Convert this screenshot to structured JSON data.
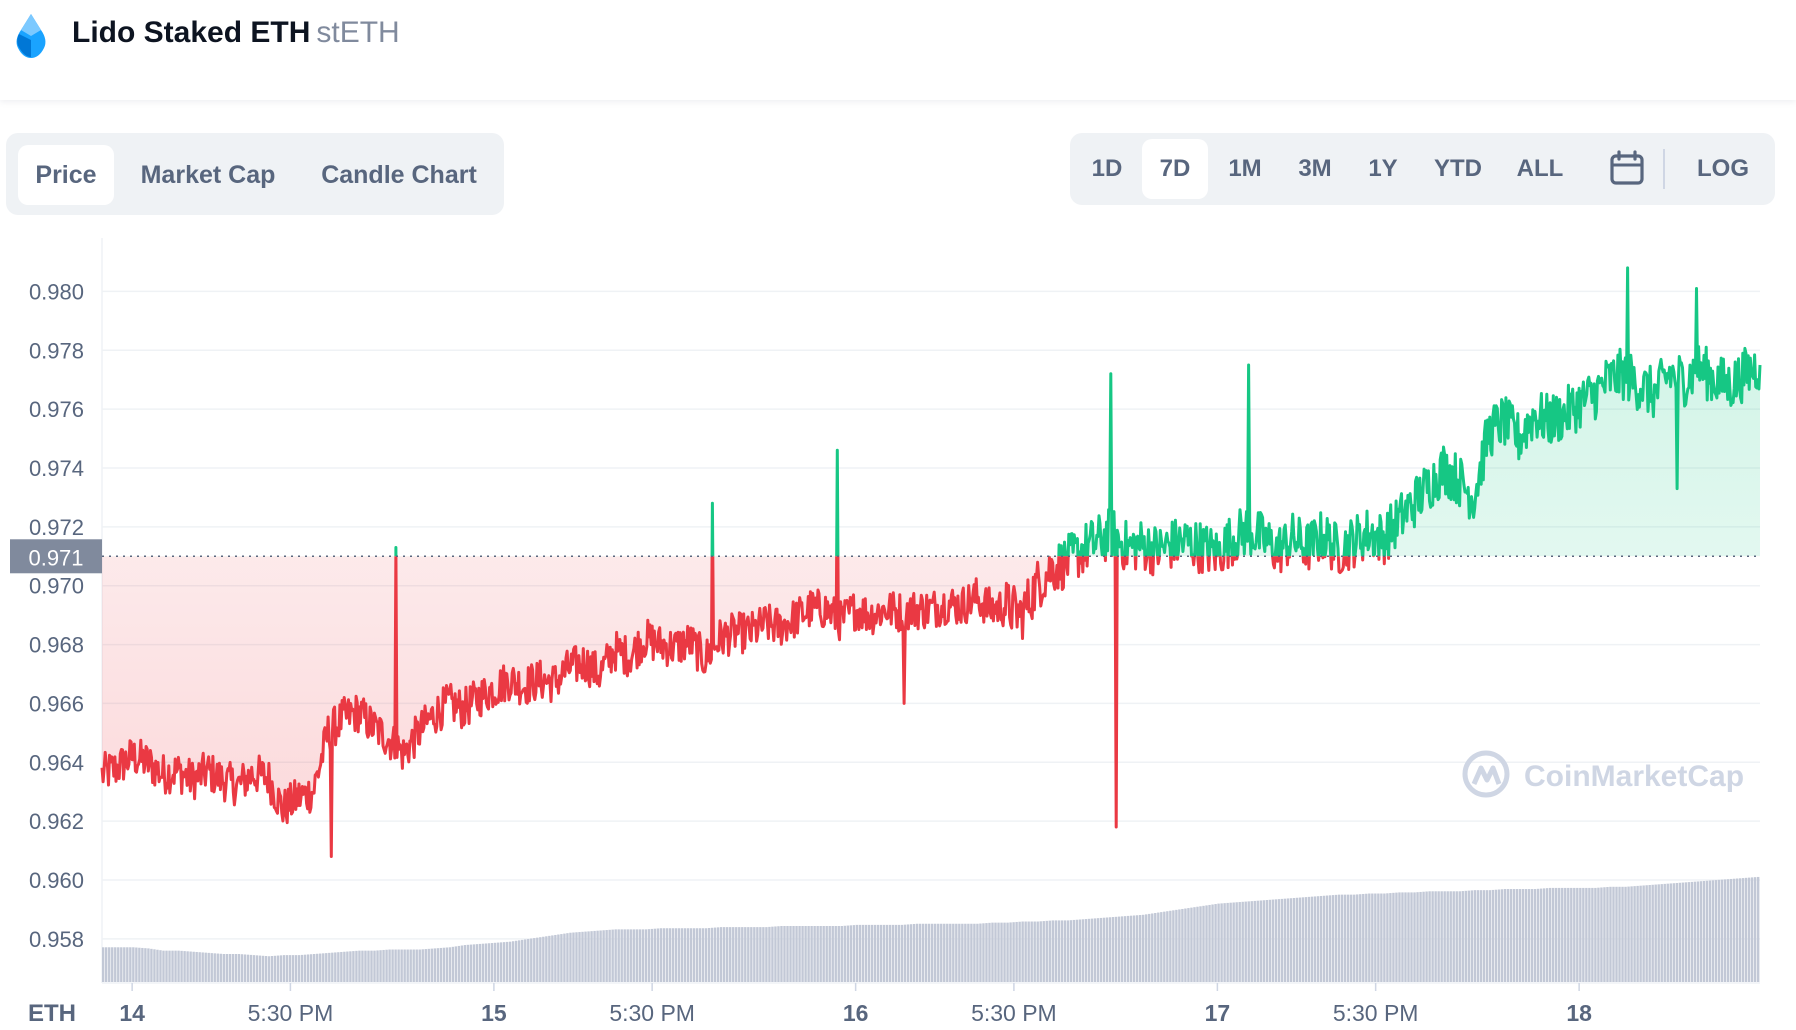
{
  "header": {
    "name": "Lido Staked ETH",
    "symbol": "stETH"
  },
  "tabs": [
    "Price",
    "Market Cap",
    "Candle Chart"
  ],
  "ranges": [
    "1D",
    "7D",
    "1M",
    "3M",
    "1Y",
    "YTD",
    "ALL"
  ],
  "log_label": "LOG",
  "icons": {
    "logo": "lido-drop-icon",
    "calendar": "calendar-icon"
  },
  "colors": {
    "up": "#16c784",
    "down": "#ea3943",
    "volume": "#c2c8d6",
    "text": "#58667e"
  },
  "watermark": "CoinMarketCap",
  "chart_data": {
    "type": "line",
    "currency_label": "ETH",
    "ylim": [
      0.9565,
      0.981
    ],
    "yticks": [
      0.958,
      0.96,
      0.962,
      0.964,
      0.966,
      0.968,
      0.97,
      0.972,
      0.974,
      0.976,
      0.978,
      0.98
    ],
    "ytick_labels": [
      "0.958",
      "0.960",
      "0.962",
      "0.964",
      "0.966",
      "0.968",
      "0.970",
      "0.972",
      "0.974",
      "0.976",
      "0.978",
      "0.980"
    ],
    "xlim": [
      0,
      110
    ],
    "xticks": [
      {
        "t": 2,
        "label": "14",
        "bold": true
      },
      {
        "t": 12.5,
        "label": "5:30 PM",
        "bold": false
      },
      {
        "t": 26,
        "label": "15",
        "bold": true
      },
      {
        "t": 36.5,
        "label": "5:30 PM",
        "bold": false
      },
      {
        "t": 50,
        "label": "16",
        "bold": true
      },
      {
        "t": 60.5,
        "label": "5:30 PM",
        "bold": false
      },
      {
        "t": 74,
        "label": "17",
        "bold": true
      },
      {
        "t": 84.5,
        "label": "5:30 PM",
        "bold": false
      },
      {
        "t": 98,
        "label": "18",
        "bold": true
      }
    ],
    "baseline": 0.971,
    "baseline_label": "0.971",
    "series": [
      {
        "values": [
          [
            0,
            0.9636
          ],
          [
            1,
            0.9638
          ],
          [
            2,
            0.9642
          ],
          [
            3,
            0.964
          ],
          [
            4,
            0.9636
          ],
          [
            5,
            0.9637
          ],
          [
            6,
            0.9634
          ],
          [
            7,
            0.9637
          ],
          [
            8,
            0.9634
          ],
          [
            9,
            0.9632
          ],
          [
            10,
            0.9636
          ],
          [
            11,
            0.9635
          ],
          [
            12,
            0.9624
          ],
          [
            13,
            0.9628
          ],
          [
            14,
            0.963
          ],
          [
            15,
            0.965
          ],
          [
            16,
            0.9655
          ],
          [
            17,
            0.9657
          ],
          [
            18,
            0.9652
          ],
          [
            19,
            0.9648
          ],
          [
            20,
            0.9643
          ],
          [
            21,
            0.965
          ],
          [
            22,
            0.9656
          ],
          [
            23,
            0.966
          ],
          [
            24,
            0.9658
          ],
          [
            25,
            0.9662
          ],
          [
            26,
            0.9665
          ],
          [
            27,
            0.9668
          ],
          [
            28,
            0.9666
          ],
          [
            29,
            0.9668
          ],
          [
            30,
            0.9667
          ],
          [
            31,
            0.9672
          ],
          [
            32,
            0.9674
          ],
          [
            33,
            0.967
          ],
          [
            34,
            0.9678
          ],
          [
            35,
            0.9676
          ],
          [
            36,
            0.9682
          ],
          [
            37,
            0.968
          ],
          [
            38,
            0.9679
          ],
          [
            39,
            0.9681
          ],
          [
            40,
            0.9675
          ],
          [
            41,
            0.9682
          ],
          [
            42,
            0.9684
          ],
          [
            43,
            0.9684
          ],
          [
            44,
            0.9687
          ],
          [
            45,
            0.9686
          ],
          [
            46,
            0.9689
          ],
          [
            47,
            0.9692
          ],
          [
            48,
            0.9692
          ],
          [
            49,
            0.9688
          ],
          [
            50,
            0.9692
          ],
          [
            51,
            0.969
          ],
          [
            52,
            0.9692
          ],
          [
            53,
            0.9691
          ],
          [
            54,
            0.9692
          ],
          [
            55,
            0.9692
          ],
          [
            56,
            0.9694
          ],
          [
            57,
            0.9693
          ],
          [
            58,
            0.9696
          ],
          [
            59,
            0.9692
          ],
          [
            60,
            0.9693
          ],
          [
            61,
            0.969
          ],
          [
            62,
            0.97
          ],
          [
            63,
            0.9706
          ],
          [
            64,
            0.9708
          ],
          [
            65,
            0.9712
          ],
          [
            66,
            0.9715
          ],
          [
            67,
            0.9718
          ],
          [
            68,
            0.9713
          ],
          [
            69,
            0.9714
          ],
          [
            70,
            0.9712
          ],
          [
            71,
            0.9714
          ],
          [
            72,
            0.9715
          ],
          [
            73,
            0.9713
          ],
          [
            74,
            0.9711
          ],
          [
            75,
            0.9716
          ],
          [
            76,
            0.9719
          ],
          [
            77,
            0.9716
          ],
          [
            78,
            0.9712
          ],
          [
            79,
            0.9716
          ],
          [
            80,
            0.9713
          ],
          [
            81,
            0.9717
          ],
          [
            82,
            0.9712
          ],
          [
            83,
            0.9715
          ],
          [
            84,
            0.9718
          ],
          [
            85,
            0.9716
          ],
          [
            86,
            0.9722
          ],
          [
            87,
            0.9728
          ],
          [
            88,
            0.9734
          ],
          [
            89,
            0.974
          ],
          [
            90,
            0.9736
          ],
          [
            91,
            0.973
          ],
          [
            92,
            0.9752
          ],
          [
            93,
            0.9756
          ],
          [
            94,
            0.975
          ],
          [
            95,
            0.9758
          ],
          [
            96,
            0.9756
          ],
          [
            97,
            0.9758
          ],
          [
            98,
            0.9762
          ],
          [
            99,
            0.9765
          ],
          [
            100,
            0.977
          ],
          [
            101,
            0.9772
          ],
          [
            102,
            0.9768
          ],
          [
            103,
            0.9765
          ],
          [
            104,
            0.9772
          ],
          [
            105,
            0.977
          ],
          [
            106,
            0.9774
          ],
          [
            107,
            0.977
          ],
          [
            108,
            0.9768
          ],
          [
            109,
            0.9772
          ],
          [
            110,
            0.9775
          ]
        ]
      }
    ],
    "spikes": [
      {
        "t": 19.5,
        "to": 0.9713
      },
      {
        "t": 40.5,
        "to": 0.9728
      },
      {
        "t": 48.8,
        "to": 0.9746
      },
      {
        "t": 66.9,
        "to": 0.9772
      },
      {
        "t": 67.3,
        "to": 0.9618
      },
      {
        "t": 76.1,
        "to": 0.9775
      },
      {
        "t": 101.2,
        "to": 0.9808
      },
      {
        "t": 105.8,
        "to": 0.9801
      },
      {
        "t": 15.2,
        "to": 0.9608
      },
      {
        "t": 53.2,
        "to": 0.966
      },
      {
        "t": 104.5,
        "to": 0.9733
      }
    ],
    "volume": [
      0.31,
      0.31,
      0.31,
      0.3,
      0.28,
      0.28,
      0.27,
      0.26,
      0.25,
      0.25,
      0.24,
      0.23,
      0.24,
      0.24,
      0.25,
      0.26,
      0.27,
      0.28,
      0.28,
      0.29,
      0.29,
      0.29,
      0.3,
      0.31,
      0.33,
      0.34,
      0.35,
      0.36,
      0.38,
      0.4,
      0.42,
      0.44,
      0.45,
      0.46,
      0.47,
      0.47,
      0.47,
      0.48,
      0.48,
      0.48,
      0.48,
      0.49,
      0.49,
      0.49,
      0.49,
      0.5,
      0.5,
      0.5,
      0.5,
      0.5,
      0.51,
      0.51,
      0.51,
      0.51,
      0.52,
      0.52,
      0.52,
      0.52,
      0.52,
      0.53,
      0.53,
      0.54,
      0.54,
      0.55,
      0.55,
      0.56,
      0.57,
      0.58,
      0.59,
      0.6,
      0.62,
      0.64,
      0.66,
      0.68,
      0.7,
      0.71,
      0.72,
      0.73,
      0.74,
      0.75,
      0.76,
      0.77,
      0.78,
      0.78,
      0.79,
      0.79,
      0.8,
      0.8,
      0.81,
      0.81,
      0.81,
      0.82,
      0.82,
      0.83,
      0.83,
      0.83,
      0.84,
      0.84,
      0.84,
      0.84,
      0.85,
      0.85,
      0.86,
      0.87,
      0.88,
      0.89,
      0.9,
      0.91,
      0.92,
      0.93,
      0.94
    ]
  }
}
